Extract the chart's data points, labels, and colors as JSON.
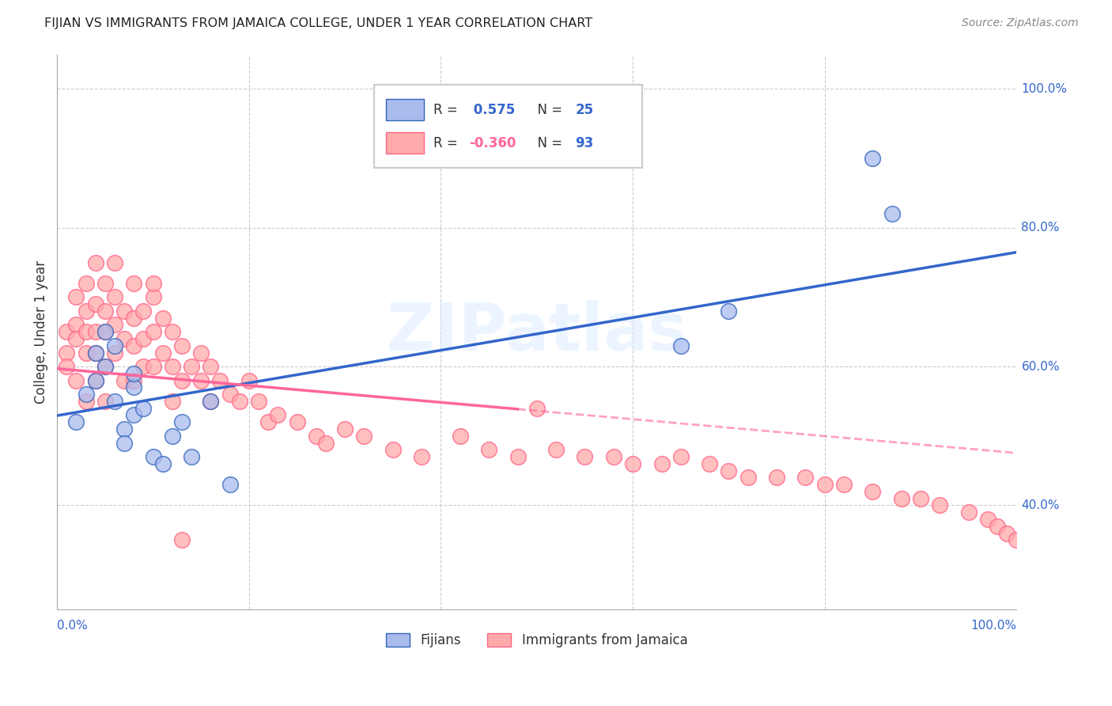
{
  "title": "FIJIAN VS IMMIGRANTS FROM JAMAICA COLLEGE, UNDER 1 YEAR CORRELATION CHART",
  "source": "Source: ZipAtlas.com",
  "ylabel": "College, Under 1 year",
  "legend_label1": "Fijians",
  "legend_label2": "Immigrants from Jamaica",
  "r1": 0.575,
  "n1": 25,
  "r2": -0.36,
  "n2": 93,
  "color_blue_fill": "#AABBEE",
  "color_pink_fill": "#FFAAAA",
  "color_blue_edge": "#3366BB",
  "color_pink_edge": "#FF6688",
  "line_blue": "#3366CC",
  "line_pink": "#FF6699",
  "bg_color": "#FFFFFF",
  "grid_color": "#CCCCCC",
  "watermark": "ZIPatlas",
  "blue_points_x": [
    0.02,
    0.03,
    0.04,
    0.04,
    0.05,
    0.05,
    0.06,
    0.06,
    0.07,
    0.07,
    0.08,
    0.08,
    0.08,
    0.09,
    0.1,
    0.11,
    0.12,
    0.13,
    0.14,
    0.16,
    0.18,
    0.65,
    0.7,
    0.85,
    0.87
  ],
  "blue_points_y": [
    0.52,
    0.56,
    0.62,
    0.58,
    0.65,
    0.6,
    0.55,
    0.63,
    0.51,
    0.49,
    0.53,
    0.57,
    0.59,
    0.54,
    0.47,
    0.46,
    0.5,
    0.52,
    0.47,
    0.55,
    0.43,
    0.63,
    0.68,
    0.9,
    0.82
  ],
  "pink_points_x": [
    0.01,
    0.01,
    0.01,
    0.02,
    0.02,
    0.02,
    0.02,
    0.03,
    0.03,
    0.03,
    0.03,
    0.03,
    0.04,
    0.04,
    0.04,
    0.04,
    0.05,
    0.05,
    0.05,
    0.05,
    0.05,
    0.06,
    0.06,
    0.06,
    0.07,
    0.07,
    0.07,
    0.08,
    0.08,
    0.08,
    0.08,
    0.09,
    0.09,
    0.09,
    0.1,
    0.1,
    0.1,
    0.11,
    0.11,
    0.12,
    0.12,
    0.12,
    0.13,
    0.13,
    0.14,
    0.15,
    0.15,
    0.16,
    0.16,
    0.17,
    0.18,
    0.19,
    0.2,
    0.21,
    0.22,
    0.23,
    0.25,
    0.27,
    0.28,
    0.3,
    0.32,
    0.35,
    0.38,
    0.42,
    0.45,
    0.48,
    0.5,
    0.52,
    0.55,
    0.58,
    0.6,
    0.63,
    0.65,
    0.68,
    0.7,
    0.72,
    0.75,
    0.78,
    0.8,
    0.82,
    0.85,
    0.88,
    0.9,
    0.92,
    0.95,
    0.97,
    0.98,
    0.99,
    1.0,
    0.06,
    0.1,
    0.13,
    0.04
  ],
  "pink_points_y": [
    0.65,
    0.62,
    0.6,
    0.7,
    0.66,
    0.64,
    0.58,
    0.72,
    0.68,
    0.65,
    0.62,
    0.55,
    0.69,
    0.65,
    0.62,
    0.58,
    0.72,
    0.68,
    0.65,
    0.6,
    0.55,
    0.7,
    0.66,
    0.62,
    0.68,
    0.64,
    0.58,
    0.72,
    0.67,
    0.63,
    0.58,
    0.68,
    0.64,
    0.6,
    0.7,
    0.65,
    0.6,
    0.67,
    0.62,
    0.65,
    0.6,
    0.55,
    0.63,
    0.58,
    0.6,
    0.62,
    0.58,
    0.6,
    0.55,
    0.58,
    0.56,
    0.55,
    0.58,
    0.55,
    0.52,
    0.53,
    0.52,
    0.5,
    0.49,
    0.51,
    0.5,
    0.48,
    0.47,
    0.5,
    0.48,
    0.47,
    0.54,
    0.48,
    0.47,
    0.47,
    0.46,
    0.46,
    0.47,
    0.46,
    0.45,
    0.44,
    0.44,
    0.44,
    0.43,
    0.43,
    0.42,
    0.41,
    0.41,
    0.4,
    0.39,
    0.38,
    0.37,
    0.36,
    0.35,
    0.75,
    0.72,
    0.35,
    0.75
  ],
  "xlim": [
    0.0,
    1.0
  ],
  "ylim": [
    0.25,
    1.05
  ],
  "yticks": [
    0.4,
    0.6,
    0.8,
    1.0
  ],
  "ytick_labels": [
    "40.0%",
    "60.0%",
    "80.0%",
    "100.0%"
  ],
  "xtick_vals": [
    0.0,
    0.2,
    0.4,
    0.6,
    0.8,
    1.0
  ],
  "blue_r_color": "#3366CC",
  "pink_r_color": "#FF6699",
  "n_color": "#3366CC"
}
